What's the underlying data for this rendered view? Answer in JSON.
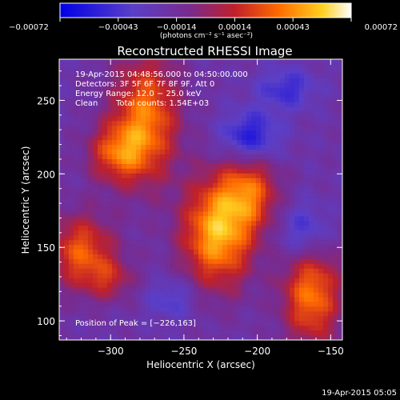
{
  "chart_data": {
    "type": "heatmap",
    "title": "Reconstructed RHESSI Image",
    "xlabel": "Heliocentric X (arcsec)",
    "ylabel": "Heliocentric Y (arcsec)",
    "xlim": [
      -335,
      -142
    ],
    "ylim": [
      87,
      278
    ],
    "x_ticks": [
      -300,
      -250,
      -200,
      -150
    ],
    "x_tick_labels": [
      "−300",
      "−250",
      "−200",
      "−150"
    ],
    "y_ticks": [
      100,
      150,
      200,
      250
    ],
    "y_tick_labels": [
      "100",
      "150",
      "200",
      "250"
    ],
    "colorbar": {
      "range": [
        -0.00072,
        0.00072
      ],
      "tick_labels": [
        "−0.00072",
        "−0.00043",
        "−0.00014",
        "0.00014",
        "0.00043",
        "0.00072"
      ],
      "unit_label": "(photons cm⁻² s⁻¹ asec⁻²)"
    },
    "annotations": {
      "time_range": "19-Apr-2015 04:48:56.000 to 04:50:00.000",
      "detectors": "Detectors: 3F 5F 6F 7F 8F 9F, Att 0",
      "energy_range": "Energy Range: 12.0 − 25.0 keV",
      "clean": "Clean",
      "total_counts": "Total counts: 1.54E+03",
      "peak_position": "Position of Peak = [−226,163]"
    },
    "sources": [
      {
        "x": -276,
        "y": 238,
        "sx": 16,
        "sy": 30,
        "amp": 0.00058
      },
      {
        "x": -296,
        "y": 214,
        "sx": 14,
        "sy": 14,
        "amp": 0.00044
      },
      {
        "x": -227,
        "y": 160,
        "sx": 17,
        "sy": 26,
        "amp": 0.00072
      },
      {
        "x": -205,
        "y": 188,
        "sx": 14,
        "sy": 18,
        "amp": 0.00046
      },
      {
        "x": -320,
        "y": 147,
        "sx": 16,
        "sy": 18,
        "amp": 0.0005
      },
      {
        "x": -163,
        "y": 118,
        "sx": 14,
        "sy": 24,
        "amp": 0.00058
      },
      {
        "x": -300,
        "y": 128,
        "sx": 12,
        "sy": 10,
        "amp": 0.00026
      }
    ],
    "background_level": -0.0002,
    "negative_lobes": [
      {
        "x": -205,
        "y": 225,
        "sx": 14,
        "sy": 12,
        "amp": -0.0004
      },
      {
        "x": -180,
        "y": 258,
        "sx": 14,
        "sy": 10,
        "amp": -0.00028
      },
      {
        "x": -168,
        "y": 160,
        "sx": 12,
        "sy": 14,
        "amp": -0.0003
      },
      {
        "x": -258,
        "y": 115,
        "sx": 12,
        "sy": 10,
        "amp": -0.00022
      }
    ]
  },
  "footer": {
    "timestamp": "19-Apr-2015 05:05"
  }
}
